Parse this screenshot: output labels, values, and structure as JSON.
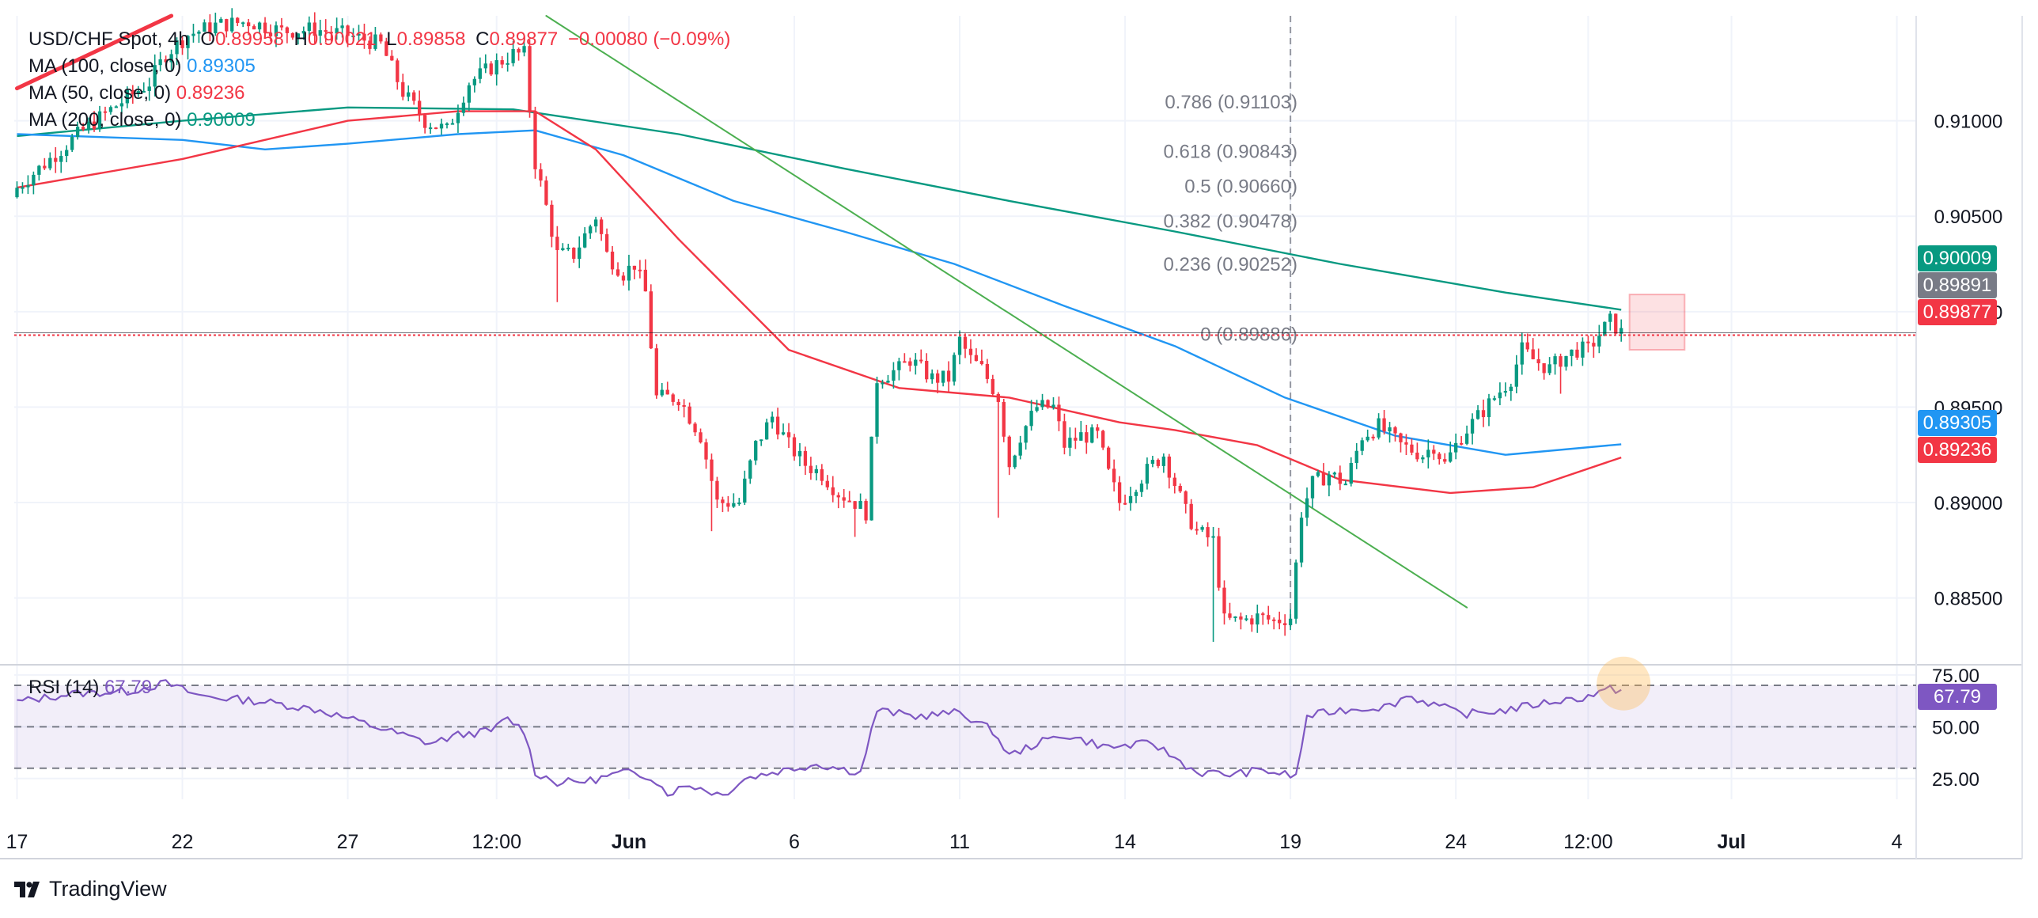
{
  "header": {
    "symbol": "USD/CHF Spot, 4h",
    "o_label": "O",
    "o_value": "0.89958",
    "h_label": "H",
    "h_value": "0.90021",
    "l_label": "L",
    "l_value": "0.89858",
    "c_label": "C",
    "c_value": "0.89877",
    "change": "−0.00080 (−0.09%)"
  },
  "indicators": [
    {
      "label": "MA (100, close, 0)",
      "value": "0.89305",
      "color": "#2196f3"
    },
    {
      "label": "MA (50, close, 0)",
      "value": "0.89236",
      "color": "#f23645"
    },
    {
      "label": "MA (200, close, 0)",
      "value": "0.90009",
      "color": "#089981"
    }
  ],
  "rsi": {
    "label": "RSI (14)",
    "value": "67.79",
    "color": "#7e57c2"
  },
  "price_tags": [
    {
      "value": "0.90009",
      "color": "#089981"
    },
    {
      "value": "0.89891",
      "color": "#787b86"
    },
    {
      "value": "0.89877",
      "color": "#f23645"
    },
    {
      "value": "0.89305",
      "color": "#2196f3"
    },
    {
      "value": "0.89236",
      "color": "#f23645"
    },
    {
      "value": "67.79",
      "color": "#7e57c2"
    }
  ],
  "brand": "TradingView",
  "colors": {
    "up": "#089981",
    "down": "#f23645",
    "grid": "#f0f3fa",
    "text": "#131722",
    "axis_text": "#131722"
  },
  "chart_data": {
    "type": "candlestick",
    "title": "USD/CHF Spot, 4h",
    "x_ticks": [
      {
        "label": "17",
        "index": 0
      },
      {
        "label": "22",
        "index": 30
      },
      {
        "label": "27",
        "index": 60
      },
      {
        "label": "12:00",
        "index": 87
      },
      {
        "label": "Jun",
        "index": 111
      },
      {
        "label": "6",
        "index": 141
      },
      {
        "label": "11",
        "index": 171
      },
      {
        "label": "14",
        "index": 201
      },
      {
        "label": "19",
        "index": 231
      },
      {
        "label": "24",
        "index": 261
      },
      {
        "label": "12:00",
        "index": 285
      },
      {
        "label": "Jul",
        "index": 311
      },
      {
        "label": "4",
        "index": 341
      }
    ],
    "y_ticks": [
      "0.91000",
      "0.90500",
      "0.90000",
      "0.89500",
      "0.89000",
      "0.88500"
    ],
    "y_tick_values": [
      0.91,
      0.905,
      0.9,
      0.895,
      0.89,
      0.885
    ],
    "ylim": [
      0.8815,
      0.9155
    ],
    "index_count": 345,
    "anchors": [
      [
        0,
        0.9065
      ],
      [
        6,
        0.908
      ],
      [
        12,
        0.9095
      ],
      [
        18,
        0.9108
      ],
      [
        24,
        0.912
      ],
      [
        27,
        0.9135
      ],
      [
        31,
        0.9145
      ],
      [
        36,
        0.915
      ],
      [
        42,
        0.9152
      ],
      [
        48,
        0.9147
      ],
      [
        54,
        0.9148
      ],
      [
        60,
        0.9145
      ],
      [
        66,
        0.914
      ],
      [
        70,
        0.9115
      ],
      [
        74,
        0.91
      ],
      [
        78,
        0.9095
      ],
      [
        82,
        0.912
      ],
      [
        86,
        0.9128
      ],
      [
        90,
        0.9135
      ],
      [
        92,
        0.9135
      ],
      [
        94,
        0.9078
      ],
      [
        96,
        0.9055
      ],
      [
        98,
        0.903
      ],
      [
        101,
        0.903
      ],
      [
        103,
        0.904
      ],
      [
        105,
        0.905
      ],
      [
        107,
        0.903
      ],
      [
        110,
        0.902
      ],
      [
        112,
        0.9025
      ],
      [
        114,
        0.901
      ],
      [
        116,
        0.8955
      ],
      [
        120,
        0.8955
      ],
      [
        124,
        0.8935
      ],
      [
        127,
        0.89
      ],
      [
        131,
        0.89
      ],
      [
        134,
        0.893
      ],
      [
        137,
        0.8945
      ],
      [
        140,
        0.893
      ],
      [
        143,
        0.892
      ],
      [
        146,
        0.8915
      ],
      [
        149,
        0.8905
      ],
      [
        152,
        0.89
      ],
      [
        154,
        0.8895
      ],
      [
        156,
        0.8965
      ],
      [
        160,
        0.897
      ],
      [
        162,
        0.8975
      ],
      [
        164,
        0.897
      ],
      [
        166,
        0.8965
      ],
      [
        169,
        0.8965
      ],
      [
        171,
        0.8985
      ],
      [
        173,
        0.8975
      ],
      [
        175,
        0.897
      ],
      [
        178,
        0.8955
      ],
      [
        180,
        0.892
      ],
      [
        182,
        0.8935
      ],
      [
        185,
        0.895
      ],
      [
        188,
        0.895
      ],
      [
        190,
        0.893
      ],
      [
        193,
        0.8935
      ],
      [
        196,
        0.8935
      ],
      [
        198,
        0.8915
      ],
      [
        200,
        0.89
      ],
      [
        203,
        0.891
      ],
      [
        206,
        0.892
      ],
      [
        208,
        0.8925
      ],
      [
        210,
        0.891
      ],
      [
        212,
        0.8895
      ],
      [
        214,
        0.8885
      ],
      [
        217,
        0.888
      ],
      [
        219,
        0.8838
      ],
      [
        222,
        0.8838
      ],
      [
        225,
        0.884
      ],
      [
        228,
        0.8838
      ],
      [
        231,
        0.884
      ],
      [
        233,
        0.8895
      ],
      [
        235,
        0.891
      ],
      [
        238,
        0.8915
      ],
      [
        241,
        0.891
      ],
      [
        244,
        0.8935
      ],
      [
        247,
        0.894
      ],
      [
        251,
        0.893
      ],
      [
        255,
        0.8925
      ],
      [
        257,
        0.893
      ],
      [
        259,
        0.892
      ],
      [
        262,
        0.8935
      ],
      [
        265,
        0.8945
      ],
      [
        268,
        0.8955
      ],
      [
        271,
        0.8965
      ],
      [
        273,
        0.898
      ],
      [
        275,
        0.8975
      ],
      [
        278,
        0.897
      ],
      [
        280,
        0.8975
      ],
      [
        283,
        0.898
      ],
      [
        285,
        0.898
      ],
      [
        287,
        0.8988
      ],
      [
        289,
        0.8995
      ],
      [
        291,
        0.8989
      ]
    ],
    "lows": [
      {
        "index": 98,
        "value": 0.9005
      },
      {
        "index": 126,
        "value": 0.8885
      },
      {
        "index": 152,
        "value": 0.8882
      },
      {
        "index": 178,
        "value": 0.8892
      },
      {
        "index": 217,
        "value": 0.8827
      },
      {
        "index": 230,
        "value": 0.8832
      },
      {
        "index": 280,
        "value": 0.8957
      }
    ],
    "ma_series": [
      {
        "name": "MA 200",
        "color": "#089981",
        "points": [
          [
            0,
            0.9092
          ],
          [
            30,
            0.91
          ],
          [
            60,
            0.9107
          ],
          [
            90,
            0.9106
          ],
          [
            120,
            0.9093
          ],
          [
            150,
            0.9075
          ],
          [
            180,
            0.9058
          ],
          [
            210,
            0.9042
          ],
          [
            240,
            0.9025
          ],
          [
            270,
            0.901
          ],
          [
            291,
            0.9001
          ]
        ]
      },
      {
        "name": "MA 100",
        "color": "#2196f3",
        "points": [
          [
            0,
            0.9093
          ],
          [
            30,
            0.909
          ],
          [
            45,
            0.9085
          ],
          [
            60,
            0.9088
          ],
          [
            80,
            0.9093
          ],
          [
            94,
            0.9095
          ],
          [
            110,
            0.9082
          ],
          [
            130,
            0.9058
          ],
          [
            150,
            0.9042
          ],
          [
            170,
            0.9025
          ],
          [
            190,
            0.9003
          ],
          [
            210,
            0.8982
          ],
          [
            230,
            0.8955
          ],
          [
            250,
            0.8935
          ],
          [
            270,
            0.8925
          ],
          [
            291,
            0.89305
          ]
        ]
      },
      {
        "name": "MA 50",
        "color": "#f23645",
        "points": [
          [
            0,
            0.9065
          ],
          [
            30,
            0.908
          ],
          [
            60,
            0.91
          ],
          [
            80,
            0.9105
          ],
          [
            94,
            0.9105
          ],
          [
            105,
            0.9085
          ],
          [
            120,
            0.9038
          ],
          [
            140,
            0.898
          ],
          [
            160,
            0.896
          ],
          [
            180,
            0.8955
          ],
          [
            200,
            0.8942
          ],
          [
            210,
            0.8938
          ],
          [
            225,
            0.893
          ],
          [
            240,
            0.8912
          ],
          [
            260,
            0.8905
          ],
          [
            275,
            0.8908
          ],
          [
            291,
            0.89236
          ]
        ]
      }
    ],
    "trendlines": [
      {
        "name": "thick-red-trendline",
        "color": "#f23645",
        "width": 5,
        "from": [
          0,
          0.9117
        ],
        "to": [
          28,
          0.9155
        ]
      },
      {
        "name": "green-downtrend-line",
        "color": "#4caf50",
        "width": 2,
        "from": [
          96,
          0.9155
        ],
        "to": [
          263,
          0.8845
        ]
      }
    ],
    "fib_levels": [
      {
        "label": "0.786 (0.91103)",
        "value": 0.91103
      },
      {
        "label": "0.618 (0.90843)",
        "value": 0.90843
      },
      {
        "label": "0.5 (0.90660)",
        "value": 0.9066
      },
      {
        "label": "0.382 (0.90478)",
        "value": 0.90478
      },
      {
        "label": "0.236 (0.90252)",
        "value": 0.90252
      },
      {
        "label": "0 (0.89886)",
        "value": 0.89886
      }
    ],
    "current_price": 0.89877,
    "highlight_zone": {
      "from_index": 292.5,
      "to_index": 302.5,
      "from_value": 0.898,
      "to_value": 0.9009
    },
    "vertical_marker_index": 231,
    "rsi_panel": {
      "y_ticks": [
        "75.00",
        "50.00",
        "25.00"
      ],
      "y_tick_values": [
        75,
        50,
        25
      ],
      "ylim": [
        15,
        78
      ],
      "band": [
        30,
        70
      ],
      "points": [
        [
          0,
          62
        ],
        [
          10,
          66
        ],
        [
          20,
          67
        ],
        [
          27,
          71
        ],
        [
          33,
          65
        ],
        [
          45,
          62
        ],
        [
          55,
          58
        ],
        [
          65,
          50
        ],
        [
          75,
          42
        ],
        [
          80,
          46
        ],
        [
          86,
          48
        ],
        [
          89,
          54
        ],
        [
          92,
          48
        ],
        [
          94,
          28
        ],
        [
          98,
          23
        ],
        [
          104,
          24
        ],
        [
          110,
          28
        ],
        [
          115,
          26
        ],
        [
          118,
          18
        ],
        [
          122,
          22
        ],
        [
          128,
          17
        ],
        [
          132,
          25
        ],
        [
          137,
          28
        ],
        [
          145,
          32
        ],
        [
          153,
          28
        ],
        [
          156,
          58
        ],
        [
          163,
          55
        ],
        [
          171,
          57
        ],
        [
          177,
          48
        ],
        [
          180,
          36
        ],
        [
          185,
          42
        ],
        [
          190,
          46
        ],
        [
          198,
          40
        ],
        [
          206,
          42
        ],
        [
          214,
          28
        ],
        [
          220,
          27
        ],
        [
          226,
          29
        ],
        [
          232,
          26
        ],
        [
          234,
          55
        ],
        [
          240,
          58
        ],
        [
          249,
          60
        ],
        [
          252,
          65
        ],
        [
          258,
          60
        ],
        [
          262,
          56
        ],
        [
          270,
          58
        ],
        [
          278,
          62
        ],
        [
          284,
          64
        ],
        [
          289,
          68
        ],
        [
          291,
          67.8
        ]
      ],
      "highlight_index": 290,
      "highlight_value": 67.8
    }
  }
}
